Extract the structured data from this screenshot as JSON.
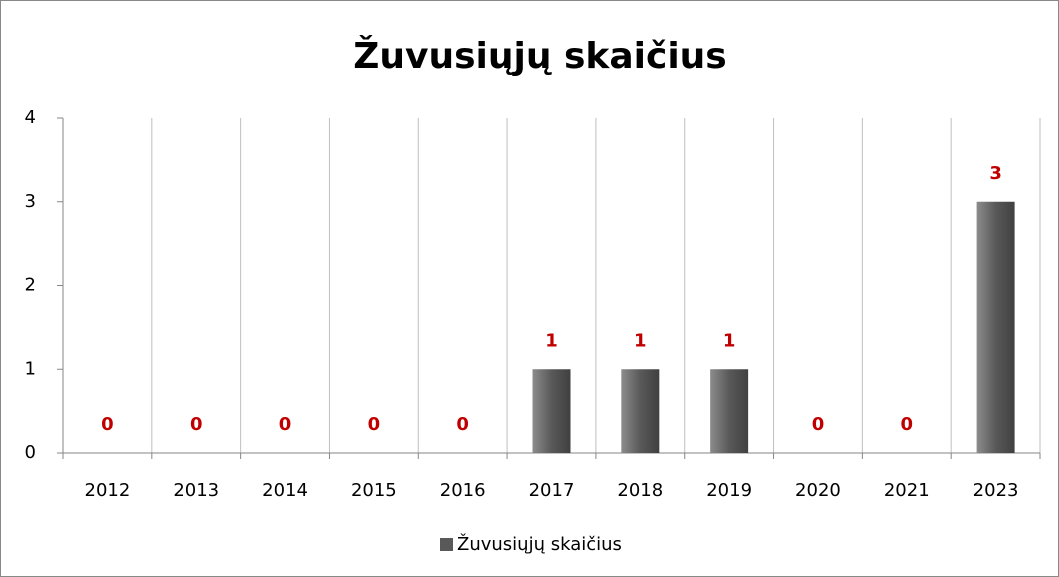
{
  "chart_data": {
    "type": "bar",
    "title": "Žuvusiųjų skaičius",
    "categories": [
      "2012",
      "2013",
      "2014",
      "2015",
      "2016",
      "2017",
      "2018",
      "2019",
      "2020",
      "2021",
      "2023"
    ],
    "series": [
      {
        "name": "Žuvusiųjų skaičius",
        "color": "#595959",
        "values": [
          0,
          0,
          0,
          0,
          0,
          1,
          1,
          1,
          0,
          0,
          3
        ]
      }
    ],
    "ylim": [
      0,
      4
    ],
    "yticks": [
      0,
      1,
      2,
      3,
      4
    ],
    "grid": true,
    "legend": "bottom"
  }
}
